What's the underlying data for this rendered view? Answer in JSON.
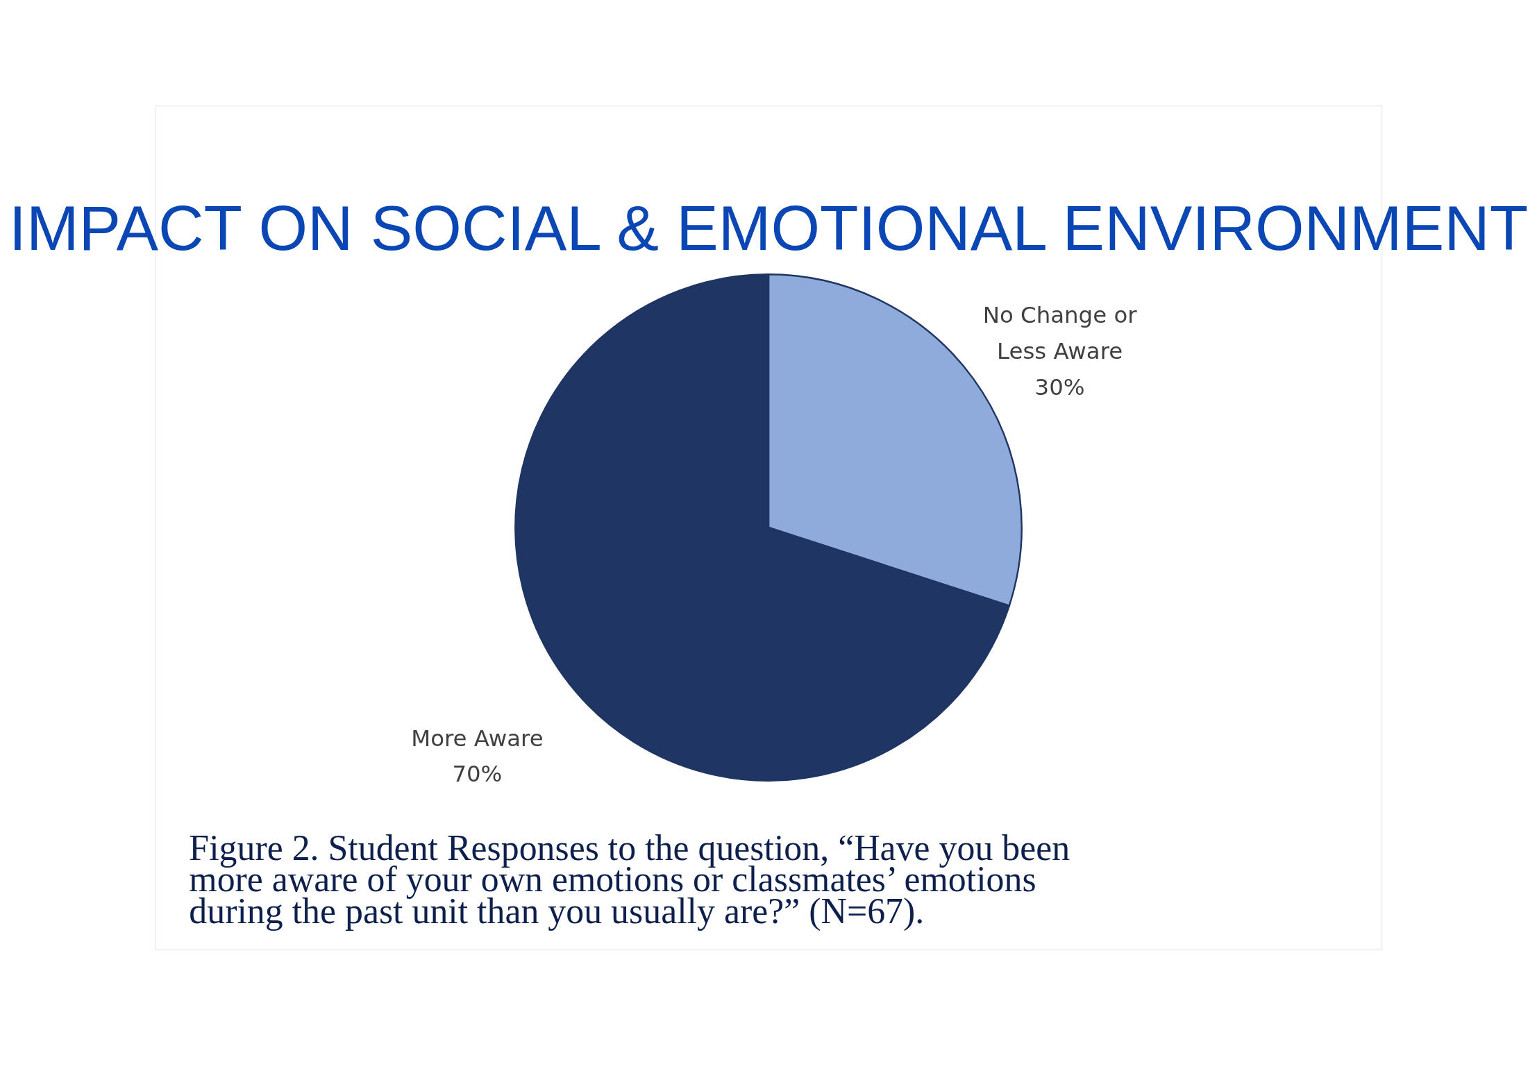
{
  "chart_data": {
    "type": "pie",
    "title": "IMPACT ON SOCIAL & EMOTIONAL ENVIRONMENT",
    "categories": [
      "No Change or Less Aware",
      "More Aware"
    ],
    "values": [
      30,
      70
    ],
    "colors": [
      "#8eabdc",
      "#1f3563"
    ],
    "value_labels": [
      "30%",
      "70%"
    ],
    "annotations": [
      "Figure 2. Student Responses to the question, “Have you been more aware of your own emotions or classmates’ emotions during the past unit than you usually are?” (N=67)."
    ]
  }
}
